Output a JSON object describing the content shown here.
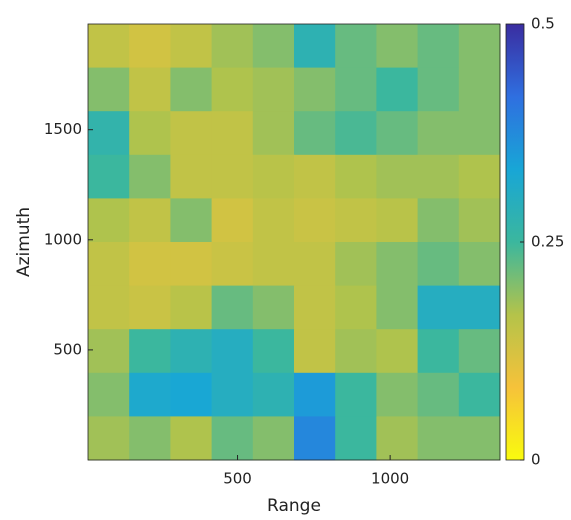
{
  "chart_data": {
    "type": "heatmap",
    "xlabel": "Range",
    "ylabel": "Azimuth",
    "xlim": [
      10,
      1360
    ],
    "ylim": [
      0,
      1980
    ],
    "xticks": [
      500,
      1000
    ],
    "yticks": [
      500,
      1000,
      1500
    ],
    "clim": [
      0,
      0.5
    ],
    "cticks": [
      0,
      0.25,
      0.5
    ],
    "colormap": [
      "#f9fb0e",
      "#f6c23a",
      "#b4c34a",
      "#3bb79e",
      "#18a6d6",
      "#2f6fe0",
      "#3a2da0"
    ],
    "values": [
      [
        0.15,
        0.13,
        0.15,
        0.18,
        0.2,
        0.28,
        0.22,
        0.2,
        0.22,
        0.2
      ],
      [
        0.2,
        0.15,
        0.2,
        0.17,
        0.18,
        0.2,
        0.22,
        0.25,
        0.22,
        0.2
      ],
      [
        0.27,
        0.17,
        0.15,
        0.15,
        0.18,
        0.22,
        0.24,
        0.22,
        0.2,
        0.2
      ],
      [
        0.25,
        0.2,
        0.15,
        0.15,
        0.16,
        0.15,
        0.17,
        0.18,
        0.18,
        0.17
      ],
      [
        0.17,
        0.15,
        0.2,
        0.13,
        0.15,
        0.14,
        0.15,
        0.16,
        0.2,
        0.18
      ],
      [
        0.15,
        0.13,
        0.13,
        0.14,
        0.15,
        0.15,
        0.18,
        0.2,
        0.22,
        0.2
      ],
      [
        0.15,
        0.14,
        0.16,
        0.22,
        0.2,
        0.15,
        0.17,
        0.2,
        0.3,
        0.3
      ],
      [
        0.18,
        0.25,
        0.28,
        0.3,
        0.25,
        0.15,
        0.18,
        0.17,
        0.25,
        0.22
      ],
      [
        0.2,
        0.32,
        0.33,
        0.3,
        0.28,
        0.35,
        0.25,
        0.2,
        0.22,
        0.25
      ],
      [
        0.18,
        0.2,
        0.17,
        0.22,
        0.2,
        0.38,
        0.25,
        0.18,
        0.2,
        0.2
      ]
    ]
  }
}
